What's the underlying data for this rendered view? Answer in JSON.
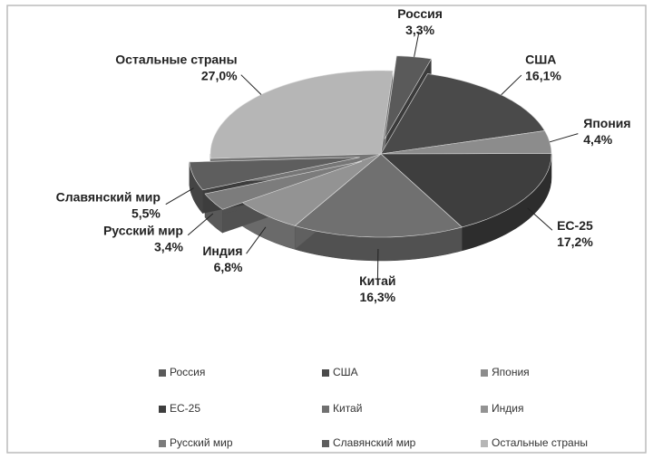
{
  "chart_data": {
    "type": "pie3d",
    "categories": [
      "Россия",
      "США",
      "Япония",
      "ЕС-25",
      "Китай",
      "Индия",
      "Русский мир",
      "Славянский мир",
      "Остальные страны"
    ],
    "values": [
      3.3,
      16.1,
      4.4,
      17.2,
      16.3,
      6.8,
      3.4,
      5.5,
      27.0
    ],
    "value_labels": [
      "3,3%",
      "16,1%",
      "4,4%",
      "17,2%",
      "16,3%",
      "6,8%",
      "3,4%",
      "5,5%",
      "27,0%"
    ],
    "colors": [
      "#5a5a5a",
      "#4a4a4a",
      "#8c8c8c",
      "#3e3e3e",
      "#707070",
      "#939393",
      "#7c7c7c",
      "#5e5e5e",
      "#b6b6b6"
    ],
    "exploded": [
      "Россия",
      "Русский мир",
      "Славянский мир"
    ],
    "legend": "bottom"
  }
}
